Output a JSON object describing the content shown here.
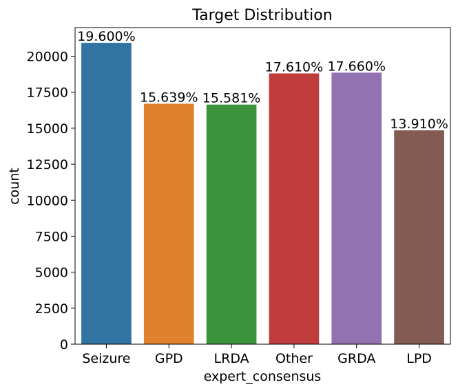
{
  "chart_data": {
    "type": "bar",
    "title": "Target Distribution",
    "xlabel": "expert_consensus",
    "ylabel": "count",
    "categories": [
      "Seizure",
      "GPD",
      "LRDA",
      "Other",
      "GRDA",
      "LPD"
    ],
    "values": [
      20933,
      16702,
      16640,
      18807,
      18861,
      14856
    ],
    "data_labels": [
      "19.600%",
      "15.639%",
      "15.581%",
      "17.610%",
      "17.660%",
      "13.910%"
    ],
    "colors": [
      "#3274a1",
      "#e1812c",
      "#3a923a",
      "#c03d3e",
      "#9372b2",
      "#845b53"
    ],
    "ylim": [
      0,
      21990
    ],
    "yticks": [
      0,
      2500,
      5000,
      7500,
      10000,
      12500,
      15000,
      17500,
      20000
    ],
    "grid": false,
    "legend": "none"
  }
}
